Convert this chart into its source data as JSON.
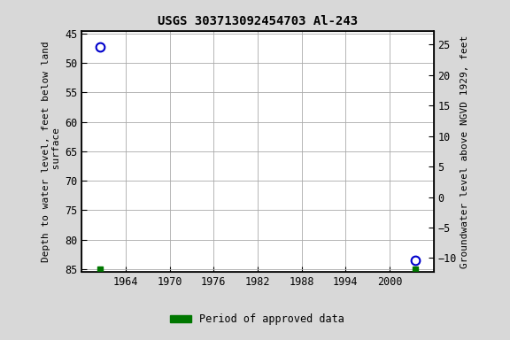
{
  "title": "USGS 303713092454703 Al-243",
  "left_ylabel": "Depth to water level, feet below land\n surface",
  "right_ylabel": "Groundwater level above NGVD 1929, feet",
  "background_color": "#d8d8d8",
  "plot_bg_color": "#ffffff",
  "grid_color": "#aaaaaa",
  "xlim": [
    1958,
    2006
  ],
  "ylim_left": [
    85.5,
    44.5
  ],
  "ylim_right": [
    -12.3,
    27.3
  ],
  "xticks": [
    1964,
    1970,
    1976,
    1982,
    1988,
    1994,
    2000
  ],
  "yticks_left": [
    45,
    50,
    55,
    60,
    65,
    70,
    75,
    80,
    85
  ],
  "yticks_right": [
    25,
    20,
    15,
    10,
    5,
    0,
    -5,
    -10
  ],
  "data_points": [
    {
      "x": 1960.5,
      "y_left": 47.3,
      "color": "#0000cc"
    },
    {
      "x": 2003.5,
      "y_left": 83.5,
      "color": "#0000cc"
    }
  ],
  "green_squares": [
    {
      "x": 1960.5,
      "y_left": 85.0
    },
    {
      "x": 2003.5,
      "y_left": 85.0
    }
  ],
  "legend_label": "Period of approved data",
  "legend_color": "#007700",
  "title_fontsize": 10,
  "axis_label_fontsize": 8,
  "tick_fontsize": 8.5
}
